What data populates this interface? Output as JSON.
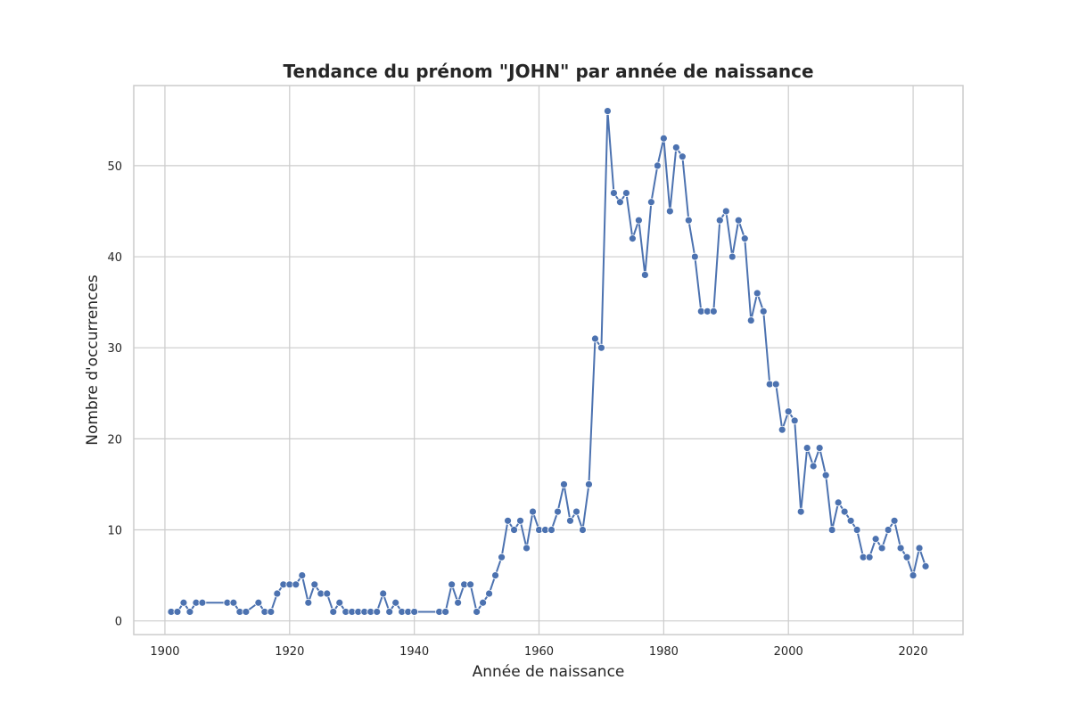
{
  "chart_data": {
    "type": "line",
    "title": "Tendance du prénom \"JOHN\" par année de naissance",
    "xlabel": "Année de naissance",
    "ylabel": "Nombre d'occurrences",
    "xlim": [
      1895,
      2028
    ],
    "ylim": [
      -1.5,
      58.8
    ],
    "xticks": [
      1900,
      1920,
      1940,
      1960,
      1980,
      2000,
      2020
    ],
    "yticks": [
      0,
      10,
      20,
      30,
      40,
      50
    ],
    "grid": true,
    "color": "#4c72b0",
    "x": [
      1901,
      1902,
      1903,
      1904,
      1905,
      1906,
      1910,
      1911,
      1912,
      1913,
      1915,
      1916,
      1917,
      1918,
      1919,
      1920,
      1921,
      1922,
      1923,
      1924,
      1925,
      1926,
      1927,
      1928,
      1929,
      1930,
      1931,
      1932,
      1933,
      1934,
      1935,
      1936,
      1937,
      1938,
      1939,
      1940,
      1944,
      1945,
      1946,
      1947,
      1948,
      1949,
      1950,
      1951,
      1952,
      1953,
      1954,
      1955,
      1956,
      1957,
      1958,
      1959,
      1960,
      1961,
      1962,
      1963,
      1964,
      1965,
      1966,
      1967,
      1968,
      1969,
      1970,
      1971,
      1972,
      1973,
      1974,
      1975,
      1976,
      1977,
      1978,
      1979,
      1980,
      1981,
      1982,
      1983,
      1984,
      1985,
      1986,
      1987,
      1988,
      1989,
      1990,
      1991,
      1992,
      1993,
      1994,
      1995,
      1996,
      1997,
      1998,
      1999,
      2000,
      2001,
      2002,
      2003,
      2004,
      2005,
      2006,
      2007,
      2008,
      2009,
      2010,
      2011,
      2012,
      2013,
      2014,
      2015,
      2016,
      2017,
      2018,
      2019,
      2020,
      2021,
      2022
    ],
    "y": [
      1,
      1,
      2,
      1,
      2,
      2,
      2,
      2,
      1,
      1,
      2,
      1,
      1,
      3,
      4,
      4,
      4,
      5,
      2,
      4,
      3,
      3,
      1,
      2,
      1,
      1,
      1,
      1,
      1,
      1,
      3,
      1,
      2,
      1,
      1,
      1,
      1,
      1,
      4,
      2,
      4,
      4,
      1,
      2,
      3,
      5,
      7,
      11,
      10,
      11,
      8,
      12,
      10,
      10,
      10,
      12,
      15,
      11,
      12,
      10,
      15,
      31,
      30,
      56,
      47,
      46,
      47,
      42,
      44,
      38,
      46,
      50,
      53,
      45,
      52,
      51,
      44,
      40,
      34,
      34,
      34,
      44,
      45,
      40,
      44,
      42,
      33,
      36,
      34,
      26,
      26,
      21,
      23,
      22,
      12,
      19,
      17,
      19,
      16,
      10,
      13,
      12,
      11,
      10,
      7,
      7,
      9,
      8,
      10,
      11,
      8,
      7,
      5,
      8,
      6
    ]
  }
}
